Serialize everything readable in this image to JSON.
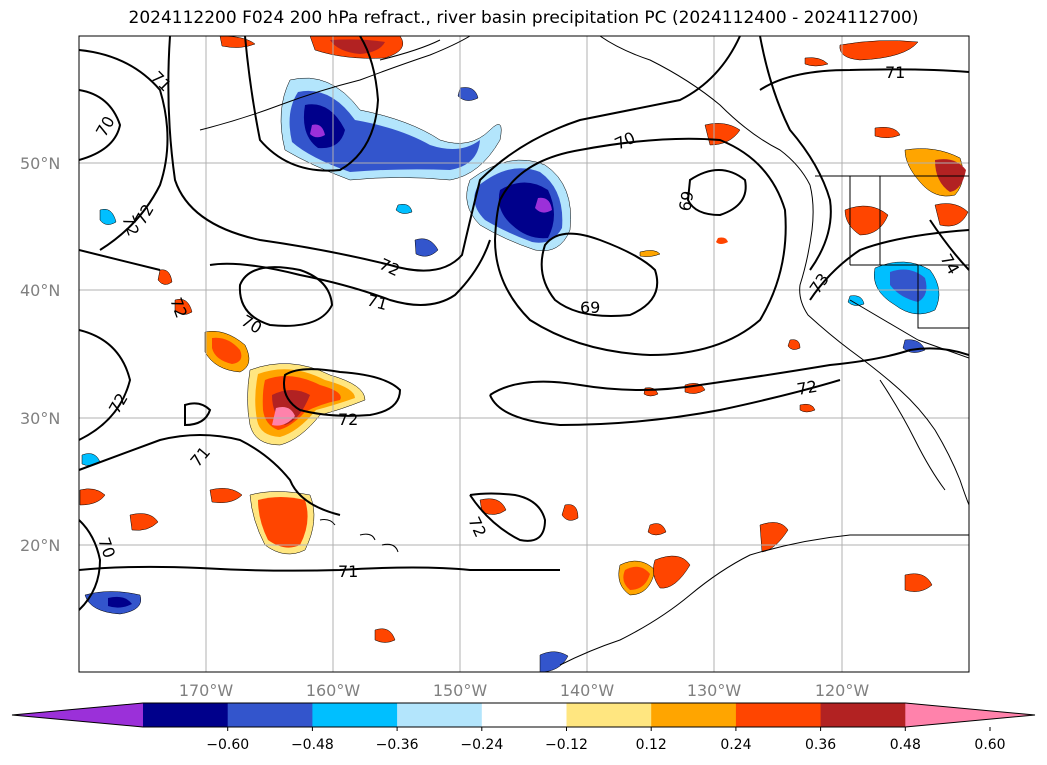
{
  "title": "2024112200 F024 200 hPa refract., river basin precipitation PC (2024112400 - 2024112700)",
  "lat_labels": [
    "50°N",
    "40°N",
    "30°N",
    "20°N"
  ],
  "lon_labels": [
    "170°W",
    "160°W",
    "150°W",
    "140°W",
    "130°W",
    "120°W"
  ],
  "contour_labels": [
    "71",
    "70",
    "72",
    "72",
    "70",
    "71",
    "72",
    "72",
    "71",
    "72",
    "71",
    "70",
    "72",
    "70",
    "71",
    "69",
    "69",
    "73",
    "72",
    "74",
    "71"
  ],
  "colorbar": {
    "ticks": [
      "−0.60",
      "−0.48",
      "−0.36",
      "−0.24",
      "−0.12",
      "0.12",
      "0.24",
      "0.36",
      "0.48",
      "0.60"
    ],
    "colors": [
      "#9b30d9",
      "#00008b",
      "#3355cc",
      "#00bfff",
      "#b3e5fc",
      "#ffffff",
      "#ffe680",
      "#ffa500",
      "#ff4500",
      "#b22222",
      "#ff82ab"
    ]
  },
  "colors": {
    "frame": "#000000",
    "grid": "#b0b0b0",
    "coast": "#000000",
    "contour": "#000000"
  }
}
